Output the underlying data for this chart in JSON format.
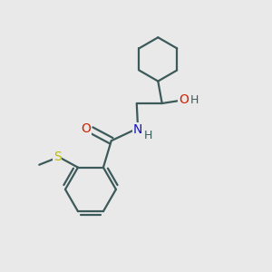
{
  "background_color": "#e9e9e9",
  "bond_color": "#3d5a5a",
  "atom_colors": {
    "O": "#cc2200",
    "N": "#1111cc",
    "S": "#bbbb00",
    "H": "#3d5a5a",
    "C": "#3d5a5a"
  },
  "figsize": [
    3.0,
    3.0
  ],
  "dpi": 100,
  "bond_lw": 1.6,
  "fontsize": 10
}
